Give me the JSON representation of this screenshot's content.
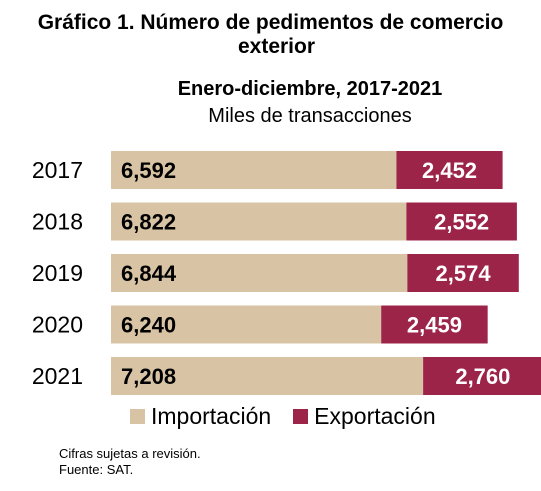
{
  "header": {
    "title_line1": "Gráfico 1. Número de pedimentos de comercio",
    "title_line2": "exterior",
    "subtitle": "Enero-diciembre, 2017-2021",
    "units": "Miles de transacciones"
  },
  "colors": {
    "importacion": "#d8c4a5",
    "exportacion": "#9d2449"
  },
  "chart_data": {
    "type": "bar",
    "orientation": "horizontal",
    "stacked": true,
    "categories": [
      "2017",
      "2018",
      "2019",
      "2020",
      "2021"
    ],
    "series": [
      {
        "name": "Importación",
        "values": [
          6592,
          6822,
          6844,
          6240,
          7208
        ],
        "labels": [
          "6,592",
          "6,822",
          "6,844",
          "6,240",
          "7,208"
        ]
      },
      {
        "name": "Exportación",
        "values": [
          2452,
          2552,
          2574,
          2459,
          2760
        ],
        "labels": [
          "2,452",
          "2,552",
          "2,574",
          "2,459",
          "2,760"
        ]
      }
    ],
    "legend_position": "bottom",
    "grid": false
  },
  "notes": {
    "line1": "Cifras sujetas a revisión.",
    "line2": "Fuente: SAT."
  }
}
